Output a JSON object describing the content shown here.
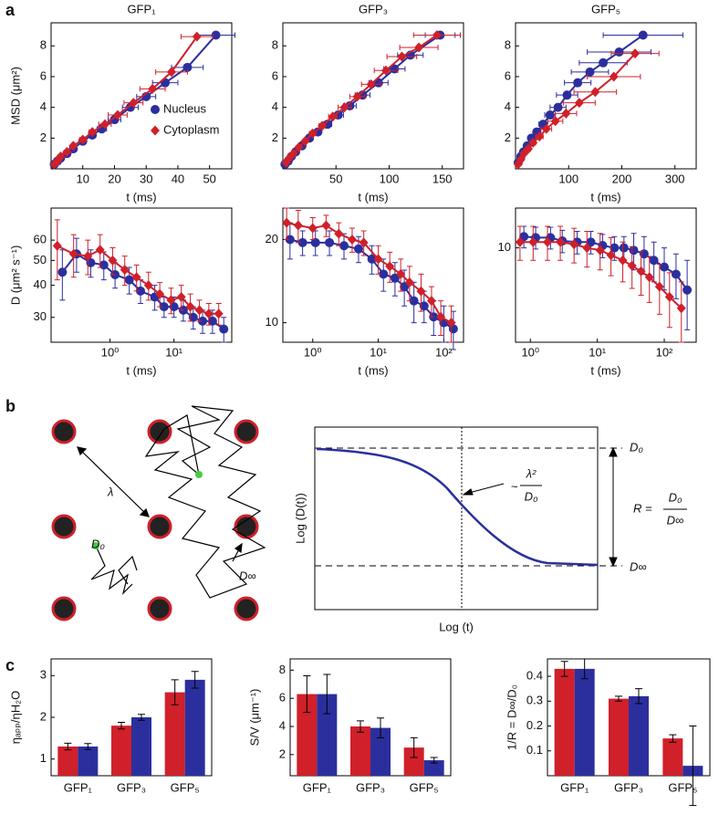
{
  "panel_labels": [
    "a",
    "b",
    "c"
  ],
  "diagram": {
    "lambda": "λ",
    "d0_walk": "D₀",
    "dinf_walk": "D∞",
    "y_label": "Log (D(t))",
    "x_label": "Log (t)",
    "d0_level": "D₀",
    "dinf_level": "D∞",
    "r_eq": "R =",
    "r_num": "D₀",
    "r_den": "D∞",
    "tilde": "~",
    "cross_num": "λ²",
    "cross_den": "D₀"
  },
  "chart_data": [
    {
      "type": "line",
      "title": "GFP₁",
      "xlabel": "t (ms)",
      "ylabel": "MSD (μm²)",
      "xlim": [
        0,
        57
      ],
      "ylim": [
        0,
        9.5
      ],
      "xticks": [
        10,
        20,
        30,
        40,
        50
      ],
      "yticks": [
        2,
        4,
        6,
        8
      ],
      "legend": "lower right",
      "series": [
        {
          "name": "Nucleus",
          "color": "#2b2f9e",
          "marker": "circle",
          "x": [
            1,
            2,
            3,
            5,
            7,
            10,
            13,
            16,
            20,
            25,
            30,
            36,
            43,
            52
          ],
          "values": [
            0.3,
            0.5,
            0.7,
            1.0,
            1.3,
            1.8,
            2.2,
            2.6,
            3.2,
            4.0,
            4.7,
            5.6,
            6.6,
            8.7
          ],
          "xerr": [
            0,
            0,
            0,
            0.5,
            0.5,
            1,
            1,
            1.5,
            2,
            2.5,
            3,
            4,
            5,
            6
          ]
        },
        {
          "name": "Cytoplasm",
          "color": "#d0202a",
          "marker": "diamond",
          "x": [
            1,
            2,
            3,
            5,
            7,
            10,
            13,
            17,
            21,
            26,
            32,
            38,
            46
          ],
          "values": [
            0.3,
            0.5,
            0.8,
            1.1,
            1.5,
            1.9,
            2.4,
            2.9,
            3.5,
            4.3,
            5.2,
            6.3,
            8.6
          ],
          "xerr": [
            0,
            0,
            0,
            0.5,
            0.5,
            1,
            1,
            2,
            3,
            3,
            4,
            5,
            5
          ]
        }
      ]
    },
    {
      "type": "line",
      "title": "GFP₃",
      "xlabel": "t (ms)",
      "xlim": [
        0,
        170
      ],
      "ylim": [
        0,
        9.5
      ],
      "xticks": [
        50,
        100,
        150
      ],
      "yticks": [
        2,
        4,
        6,
        8
      ],
      "series": [
        {
          "color": "#2b2f9e",
          "marker": "circle",
          "x": [
            2,
            5,
            8,
            12,
            18,
            25,
            33,
            42,
            52,
            63,
            75,
            90,
            105,
            120,
            148
          ],
          "values": [
            0.3,
            0.5,
            0.8,
            1.1,
            1.5,
            2.0,
            2.4,
            2.9,
            3.5,
            4.1,
            4.8,
            5.6,
            6.5,
            7.4,
            8.7
          ],
          "xerr": [
            0,
            0,
            1,
            1,
            2,
            2,
            3,
            4,
            5,
            6,
            7,
            9,
            10,
            12,
            14
          ]
        },
        {
          "color": "#d0202a",
          "marker": "diamond",
          "x": [
            3,
            6,
            10,
            15,
            21,
            28,
            37,
            47,
            58,
            70,
            83,
            97,
            112,
            128,
            145
          ],
          "values": [
            0.4,
            0.7,
            1.0,
            1.4,
            1.8,
            2.3,
            2.8,
            3.4,
            4.0,
            4.7,
            5.5,
            6.4,
            7.3,
            7.9,
            8.7
          ],
          "xerr": [
            0,
            0,
            1,
            1,
            2,
            3,
            3,
            4,
            6,
            7,
            9,
            11,
            14,
            18,
            22
          ]
        }
      ]
    },
    {
      "type": "line",
      "title": "GFP₅",
      "xlabel": "t (ms)",
      "xlim": [
        0,
        340
      ],
      "ylim": [
        0,
        9.5
      ],
      "xticks": [
        100,
        200,
        300
      ],
      "yticks": [
        2,
        4,
        6,
        8
      ],
      "series": [
        {
          "color": "#2b2f9e",
          "marker": "circle",
          "x": [
            5,
            10,
            15,
            22,
            30,
            40,
            52,
            65,
            80,
            97,
            117,
            140,
            165,
            195,
            240
          ],
          "values": [
            0.4,
            0.8,
            1.1,
            1.5,
            2.0,
            2.4,
            2.9,
            3.5,
            4.0,
            4.8,
            5.6,
            6.3,
            6.9,
            7.6,
            8.7
          ],
          "xerr": [
            1,
            2,
            2,
            3,
            4,
            6,
            8,
            10,
            15,
            20,
            25,
            35,
            45,
            60,
            75
          ]
        },
        {
          "color": "#d0202a",
          "marker": "diamond",
          "x": [
            5,
            10,
            16,
            24,
            33,
            45,
            58,
            75,
            95,
            120,
            150,
            185,
            225
          ],
          "values": [
            0.3,
            0.6,
            1.0,
            1.3,
            1.7,
            2.1,
            2.6,
            3.1,
            3.6,
            4.3,
            5.0,
            6.0,
            7.5
          ],
          "xerr": [
            1,
            2,
            3,
            4,
            5,
            7,
            10,
            14,
            20,
            30,
            40,
            50,
            45
          ]
        }
      ]
    },
    {
      "type": "line",
      "xlabel": "t (ms)",
      "ylabel": "D (μm² s⁻¹)",
      "xlog": true,
      "ylog": true,
      "xlim": [
        0.12,
        80
      ],
      "ylim": [
        24,
        80
      ],
      "xticks": [
        {
          "value": 1,
          "label": "10⁰"
        },
        {
          "value": 10,
          "label": "10¹"
        }
      ],
      "yticks": [
        30,
        40,
        50,
        60
      ],
      "series": [
        {
          "color": "#2b2f9e",
          "marker": "circle",
          "x": [
            0.18,
            0.3,
            0.5,
            0.8,
            1.2,
            2,
            3,
            5,
            7,
            10,
            14,
            20,
            28,
            40,
            60
          ],
          "values": [
            45,
            53,
            49,
            48,
            44,
            42,
            38,
            36,
            33,
            33,
            32,
            30,
            29,
            29,
            27
          ],
          "yerr": [
            10,
            8,
            6,
            6,
            5,
            5,
            4,
            4,
            3,
            3,
            3,
            3,
            3,
            3,
            3
          ]
        },
        {
          "color": "#d0202a",
          "marker": "diamond",
          "x": [
            0.15,
            0.27,
            0.45,
            0.7,
            1.1,
            1.7,
            2.6,
            4,
            6,
            9,
            13,
            18,
            25,
            35,
            50
          ],
          "values": [
            57,
            53,
            52,
            55,
            50,
            46,
            43,
            40,
            37,
            35,
            36,
            33,
            32,
            31,
            31
          ],
          "yerr": [
            15,
            10,
            8,
            8,
            6,
            6,
            5,
            5,
            4,
            4,
            4,
            4,
            3,
            3,
            3
          ]
        }
      ]
    },
    {
      "type": "line",
      "xlabel": "t (ms)",
      "xlog": true,
      "ylog": true,
      "xlim": [
        0.35,
        200
      ],
      "ylim": [
        8.5,
        26
      ],
      "xticks": [
        {
          "value": 1,
          "label": "10⁰"
        },
        {
          "value": 10,
          "label": "10¹"
        },
        {
          "value": 100,
          "label": "10²"
        }
      ],
      "yticks": [
        10,
        20
      ],
      "series": [
        {
          "color": "#2b2f9e",
          "marker": "circle",
          "x": [
            0.45,
            0.7,
            1.1,
            1.8,
            3,
            5,
            8,
            12,
            18,
            25,
            35,
            50,
            70,
            100,
            140
          ],
          "values": [
            20,
            19.5,
            19.5,
            19.5,
            19,
            18.5,
            17,
            15,
            14.5,
            13.5,
            12,
            11.5,
            10.5,
            10,
            9.5
          ],
          "yerr": [
            3,
            2,
            2,
            2,
            2,
            2,
            2,
            2,
            2,
            2,
            2,
            1.5,
            1.5,
            1.5,
            1.5
          ]
        },
        {
          "color": "#d0202a",
          "marker": "diamond",
          "x": [
            0.4,
            0.6,
            1,
            1.6,
            2.5,
            4,
            6,
            10,
            15,
            22,
            30,
            45,
            65,
            90,
            130
          ],
          "values": [
            23,
            22.5,
            22,
            22.5,
            21,
            20,
            19.5,
            17,
            16,
            15,
            14,
            13,
            12,
            10.5,
            10
          ],
          "yerr": [
            3,
            3,
            2,
            2,
            2,
            2,
            2,
            2,
            2,
            2,
            2,
            2,
            1.5,
            1.5,
            1.5
          ]
        }
      ]
    },
    {
      "type": "line",
      "xlabel": "t (ms)",
      "xlog": true,
      "ylog": true,
      "xlim": [
        0.6,
        300
      ],
      "ylim": [
        4.5,
        14
      ],
      "xticks": [
        {
          "value": 1,
          "label": "10⁰"
        },
        {
          "value": 10,
          "label": "10¹"
        },
        {
          "value": 100,
          "label": "10²"
        }
      ],
      "yticks": [
        10
      ],
      "series": [
        {
          "color": "#2b2f9e",
          "marker": "circle",
          "x": [
            0.8,
            1.2,
            2,
            3,
            5,
            8,
            12,
            18,
            25,
            35,
            50,
            70,
            100,
            150,
            220
          ],
          "values": [
            11,
            10.9,
            10.9,
            10.6,
            10.5,
            10.5,
            10.2,
            10,
            10,
            9.8,
            9.5,
            9,
            8.5,
            8,
            7
          ],
          "yerr": [
            1,
            1,
            1,
            1,
            1,
            1,
            1,
            1,
            1,
            1.5,
            1.5,
            1.5,
            1.5,
            1.5,
            2
          ]
        },
        {
          "color": "#d0202a",
          "marker": "diamond",
          "x": [
            0.7,
            1.1,
            1.8,
            2.8,
            4.5,
            7,
            11,
            16,
            24,
            33,
            45,
            60,
            85,
            120,
            180
          ],
          "values": [
            10.5,
            10.5,
            10.5,
            10.5,
            10.3,
            10,
            9.8,
            9.4,
            9,
            8.6,
            8.2,
            7.8,
            7.2,
            6.6,
            6.0
          ],
          "yerr": [
            1.5,
            1.5,
            1.5,
            1.5,
            1.5,
            1.5,
            1.5,
            1.5,
            1.5,
            1.5,
            1.5,
            1.5,
            1.5,
            1.5,
            1.5
          ]
        }
      ]
    },
    {
      "type": "bar",
      "ylabel": "ηₐₚₚ/ηH₂O",
      "categories": [
        "GFP₁",
        "GFP₃",
        "GFP₅"
      ],
      "ylim": [
        0.6,
        3.4
      ],
      "yticks": [
        1,
        2,
        3
      ],
      "series": [
        {
          "color": "#d0202a",
          "values": [
            1.3,
            1.8,
            2.6
          ],
          "err": [
            0.08,
            0.08,
            0.3
          ]
        },
        {
          "color": "#2b2f9e",
          "values": [
            1.3,
            2.0,
            2.9
          ],
          "err": [
            0.07,
            0.07,
            0.2
          ]
        }
      ]
    },
    {
      "type": "bar",
      "ylabel": "S/V (μm⁻¹)",
      "categories": [
        "GFP₁",
        "GFP₃",
        "GFP₅"
      ],
      "ylim": [
        0.5,
        8.8
      ],
      "yticks": [
        2,
        4,
        6,
        8
      ],
      "series": [
        {
          "color": "#d0202a",
          "values": [
            6.3,
            4.0,
            2.5
          ],
          "err": [
            1.3,
            0.4,
            0.7
          ]
        },
        {
          "color": "#2b2f9e",
          "values": [
            6.3,
            3.9,
            1.6
          ],
          "err": [
            1.4,
            0.7,
            0.2
          ]
        }
      ]
    },
    {
      "type": "bar",
      "ylabel": "1/R = D∞/D₀",
      "categories": [
        "GFP₁",
        "GFP₃",
        "GFP₅"
      ],
      "ylim": [
        0,
        0.47
      ],
      "yticks": [
        0.1,
        0.2,
        0.3,
        0.4
      ],
      "series": [
        {
          "color": "#d0202a",
          "values": [
            0.43,
            0.31,
            0.15
          ],
          "err": [
            0.03,
            0.01,
            0.015
          ]
        },
        {
          "color": "#2b2f9e",
          "values": [
            0.43,
            0.32,
            0.04
          ],
          "err": [
            0.04,
            0.03,
            0.16
          ]
        }
      ]
    }
  ]
}
